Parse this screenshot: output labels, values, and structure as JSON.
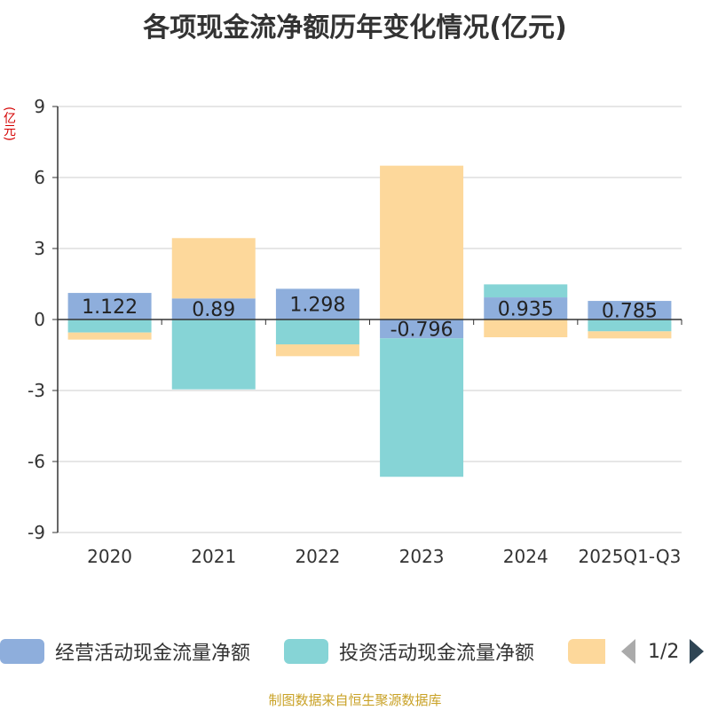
{
  "chart_data": {
    "type": "bar",
    "stacked": true,
    "title": "各项现金流净额历年变化情况(亿元)",
    "ylabel": "(亿元)",
    "ylim": [
      -9,
      9
    ],
    "yticks": [
      9,
      6,
      3,
      0,
      -3,
      -6,
      -9
    ],
    "categories": [
      "2020",
      "2021",
      "2022",
      "2023",
      "2024",
      "2025Q1-Q3"
    ],
    "series": [
      {
        "name": "经营活动现金流量净额",
        "color": "#8eaedc",
        "values": [
          1.122,
          0.89,
          1.298,
          -0.796,
          0.935,
          0.785
        ],
        "labels": [
          "1.122",
          "0.89",
          "1.298",
          "-0.796",
          "0.935",
          "0.785"
        ]
      },
      {
        "name": "投资活动现金流量净额",
        "color": "#86d4d6",
        "values": [
          -0.55,
          -2.95,
          -1.05,
          -5.85,
          0.55,
          -0.5
        ]
      },
      {
        "name": "",
        "color": "#fdd89b",
        "values": [
          -0.3,
          2.55,
          -0.5,
          6.5,
          -0.75,
          -0.3
        ]
      }
    ]
  },
  "legend": {
    "items": [
      {
        "label": "经营活动现金流量净额",
        "color": "#8eaedc"
      },
      {
        "label": "投资活动现金流量净额",
        "color": "#86d4d6"
      },
      {
        "label": "",
        "color": "#fdd89b"
      }
    ],
    "page": "1/2"
  },
  "source": "制图数据来自恒生聚源数据库"
}
